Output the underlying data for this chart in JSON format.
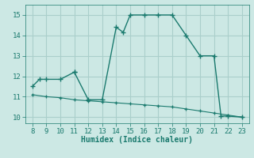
{
  "xlabel": "Humidex (Indice chaleur)",
  "x_main": [
    8,
    8.5,
    9,
    10,
    11,
    11,
    12,
    13,
    14,
    14.5,
    15,
    16,
    17,
    18,
    19,
    20,
    21,
    21.5,
    22,
    23
  ],
  "y_main": [
    11.5,
    11.85,
    11.85,
    11.85,
    12.2,
    12.2,
    10.85,
    10.85,
    14.4,
    14.15,
    15.0,
    15.0,
    15.0,
    15.0,
    14.0,
    13.0,
    13.0,
    10.05,
    10.05,
    10.0
  ],
  "x_lower": [
    8,
    9,
    10,
    11,
    12,
    13,
    14,
    15,
    16,
    17,
    18,
    19,
    20,
    21,
    22,
    23
  ],
  "y_lower": [
    11.1,
    11.0,
    10.95,
    10.85,
    10.8,
    10.75,
    10.7,
    10.65,
    10.6,
    10.55,
    10.5,
    10.4,
    10.3,
    10.2,
    10.1,
    10.0
  ],
  "line_color": "#1a7a6e",
  "bg_color": "#cce8e4",
  "grid_color": "#aacfcb",
  "xlim": [
    7.5,
    23.5
  ],
  "ylim": [
    9.7,
    15.5
  ],
  "xticks": [
    8,
    9,
    10,
    11,
    12,
    13,
    14,
    15,
    16,
    17,
    18,
    19,
    20,
    21,
    22,
    23
  ],
  "yticks": [
    10,
    11,
    12,
    13,
    14,
    15
  ]
}
